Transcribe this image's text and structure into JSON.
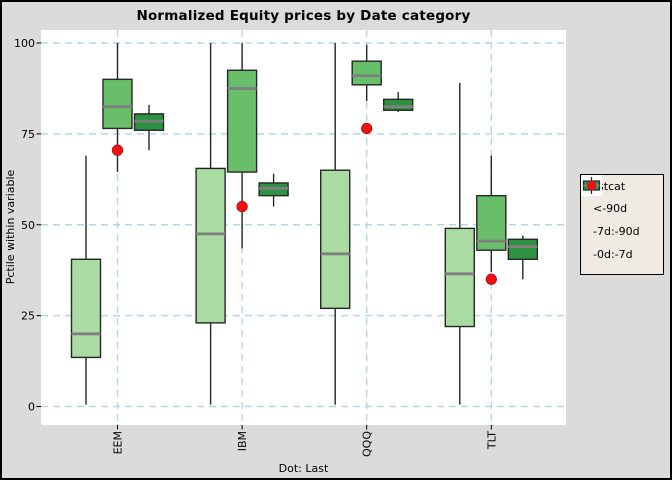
{
  "chart_data": {
    "type": "boxplot",
    "title": "Normalized Equity prices by Date category",
    "xlabel": "Dot: Last",
    "ylabel": "Pctile within variable",
    "ylim": [
      0,
      100
    ],
    "yticks": [
      0,
      25,
      50,
      75,
      100
    ],
    "categories": [
      "EEM",
      "IBM",
      "QQQ",
      "TLT"
    ],
    "grid": {
      "show": true,
      "color": "#B0D8E6",
      "style": "dashed"
    },
    "panel_bg": "#FFFFFF",
    "outer_bg": "#DBDBDB",
    "legend": {
      "title": "histcat",
      "position": "right",
      "bg": "#EFEBE2"
    },
    "series": [
      {
        "name": "<-90d",
        "color": "#A9DBA3",
        "lo": [
          0.5,
          0.5,
          0.5,
          0.5
        ],
        "q1": [
          13.5,
          23,
          27,
          22
        ],
        "med": [
          20,
          47.5,
          42,
          36.5
        ],
        "q3": [
          40.5,
          65.5,
          65,
          49
        ],
        "hi": [
          69,
          100,
          100,
          89
        ]
      },
      {
        "name": "-7d:-90d",
        "color": "#69BE69",
        "lo": [
          64.5,
          43.5,
          84,
          37
        ],
        "q1": [
          76.5,
          64.5,
          88.5,
          43
        ],
        "med": [
          82.5,
          87.5,
          91,
          45.5
        ],
        "q3": [
          90,
          92.5,
          95,
          58
        ],
        "hi": [
          100,
          100,
          99.5,
          69
        ]
      },
      {
        "name": "-0d:-7d",
        "color": "#2D9142",
        "lo": [
          70.5,
          55,
          81,
          35
        ],
        "q1": [
          76,
          58,
          81.5,
          40.5
        ],
        "med": [
          78.5,
          60,
          82.5,
          44
        ],
        "q3": [
          80.5,
          61.5,
          84.5,
          46
        ],
        "hi": [
          83,
          64,
          86.5,
          47
        ]
      }
    ],
    "points": {
      "label": "Last",
      "color": "#EE1111",
      "values": [
        70.5,
        55,
        76.5,
        35
      ]
    },
    "style": {
      "box_stroke": "#262626",
      "median_color": "#7F7F7F"
    }
  }
}
